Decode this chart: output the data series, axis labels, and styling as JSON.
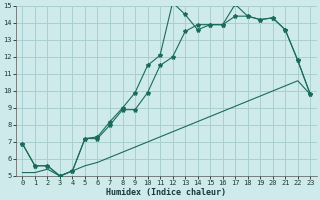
{
  "xlabel": "Humidex (Indice chaleur)",
  "bg_color": "#ceeaea",
  "grid_color": "#aacece",
  "line_color": "#1a6b5a",
  "xlim": [
    -0.5,
    23.5
  ],
  "ylim": [
    5,
    15
  ],
  "xticks": [
    0,
    1,
    2,
    3,
    4,
    5,
    6,
    7,
    8,
    9,
    10,
    11,
    12,
    13,
    14,
    15,
    16,
    17,
    18,
    19,
    20,
    21,
    22,
    23
  ],
  "yticks": [
    5,
    6,
    7,
    8,
    9,
    10,
    11,
    12,
    13,
    14,
    15
  ],
  "series1_x": [
    0,
    1,
    2,
    3,
    4,
    5,
    6,
    7,
    8,
    9,
    10,
    11,
    12,
    13,
    14,
    15,
    16,
    17,
    18,
    19,
    20,
    21,
    22,
    23
  ],
  "series1_y": [
    6.9,
    5.6,
    5.6,
    5.0,
    5.3,
    7.2,
    7.3,
    8.2,
    9.0,
    9.9,
    11.5,
    12.1,
    15.2,
    14.5,
    13.6,
    13.9,
    13.9,
    15.1,
    14.4,
    14.2,
    14.3,
    13.6,
    11.8,
    9.8
  ],
  "series2_x": [
    0,
    1,
    2,
    3,
    4,
    5,
    6,
    7,
    8,
    9,
    10,
    11,
    12,
    13,
    14,
    15,
    16,
    17,
    18,
    19,
    20,
    21,
    22,
    23
  ],
  "series2_y": [
    5.2,
    5.2,
    5.4,
    5.0,
    5.3,
    5.6,
    5.8,
    6.1,
    6.4,
    6.7,
    7.0,
    7.3,
    7.6,
    7.9,
    8.2,
    8.5,
    8.8,
    9.1,
    9.4,
    9.7,
    10.0,
    10.3,
    10.6,
    9.8
  ],
  "series3_x": [
    0,
    1,
    2,
    3,
    4,
    5,
    6,
    7,
    8,
    9,
    10,
    11,
    12,
    13,
    14,
    15,
    16,
    17,
    18,
    19,
    20,
    21,
    22,
    23
  ],
  "series3_y": [
    6.9,
    5.6,
    5.6,
    5.0,
    5.3,
    7.2,
    7.2,
    8.0,
    8.9,
    8.9,
    9.9,
    11.5,
    12.0,
    13.5,
    13.9,
    13.9,
    13.9,
    14.4,
    14.4,
    14.2,
    14.3,
    13.6,
    11.8,
    9.8
  ]
}
